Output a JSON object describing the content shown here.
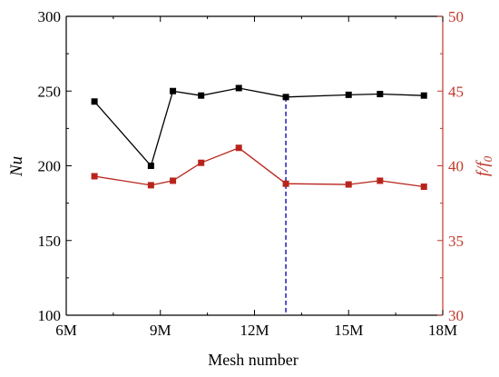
{
  "chart_data": {
    "type": "line",
    "x_axis": {
      "label": "Mesh number",
      "ticks": [
        6,
        9,
        12,
        15,
        18
      ],
      "tick_labels": [
        "6M",
        "9M",
        "12M",
        "15M",
        "18M"
      ],
      "range": [
        6,
        18
      ]
    },
    "y_left": {
      "label": "Nu",
      "ticks": [
        100,
        150,
        200,
        250,
        300
      ],
      "tick_labels": [
        "100",
        "150",
        "200",
        "250",
        "300"
      ],
      "range": [
        100,
        300
      ]
    },
    "y_right": {
      "label_main": "f/f",
      "label_sub": "0",
      "ticks": [
        30,
        35,
        40,
        45,
        50
      ],
      "tick_labels": [
        "30",
        "35",
        "40",
        "45",
        "50"
      ],
      "range": [
        30,
        50
      ]
    },
    "series": [
      {
        "axis": "left",
        "color": "#000000",
        "marker": "square",
        "points": [
          {
            "x": 6.9,
            "y": 243
          },
          {
            "x": 8.7,
            "y": 200
          },
          {
            "x": 9.4,
            "y": 250
          },
          {
            "x": 10.3,
            "y": 247
          },
          {
            "x": 11.5,
            "y": 252
          },
          {
            "x": 13.0,
            "y": 246
          },
          {
            "x": 15.0,
            "y": 247.5
          },
          {
            "x": 16.0,
            "y": 248
          },
          {
            "x": 17.4,
            "y": 247
          }
        ]
      },
      {
        "axis": "right",
        "color": "#b8241c",
        "marker": "square",
        "points": [
          {
            "x": 6.9,
            "y": 39.3
          },
          {
            "x": 8.7,
            "y": 38.7
          },
          {
            "x": 9.4,
            "y": 39.0
          },
          {
            "x": 10.3,
            "y": 40.2
          },
          {
            "x": 11.5,
            "y": 41.2
          },
          {
            "x": 13.0,
            "y": 38.8
          },
          {
            "x": 15.0,
            "y": 38.75
          },
          {
            "x": 16.0,
            "y": 39.0
          },
          {
            "x": 17.4,
            "y": 38.6
          }
        ]
      }
    ],
    "reference_line": {
      "x": 13.0,
      "color": "#2a2ab8",
      "style": "dashed"
    },
    "colors": {
      "left_axis": "#000000",
      "right_axis": "#c0392b"
    },
    "grid": false,
    "legend": "none"
  }
}
